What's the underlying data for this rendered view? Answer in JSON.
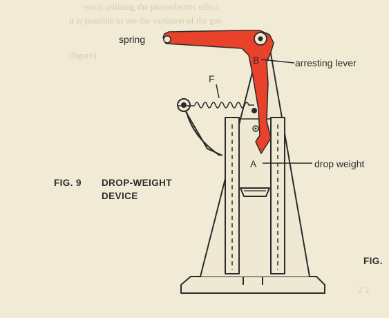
{
  "background_text": {
    "line1": "rystal utilizing the piezoelectric effect",
    "line2": "it is possible to see the variation of the gas",
    "line3": "(figure)",
    "bottom": "2 2"
  },
  "labels": {
    "spring": "spring",
    "arresting_lever": "arresting lever",
    "drop_weight": "drop weight",
    "point_b": "B",
    "point_a": "A",
    "point_f": "F"
  },
  "caption": {
    "fig_number": "FIG. 9",
    "title_line1": "DROP-WEIGHT",
    "title_line2": "DEVICE",
    "next_fig": "FIG."
  },
  "colors": {
    "lever": "#e8422a",
    "ink": "#2a2a2a",
    "paper": "#f1ebd6"
  }
}
